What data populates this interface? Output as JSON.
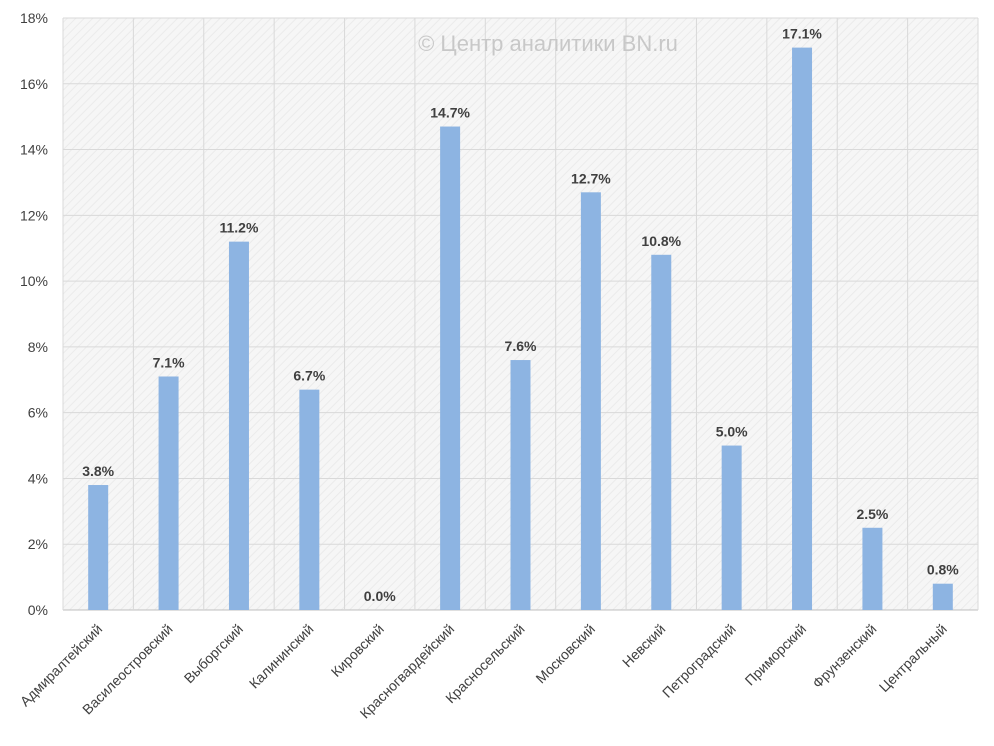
{
  "watermark": "© Центр аналитики BN.ru",
  "chart_data": {
    "type": "bar",
    "title": "",
    "xlabel": "",
    "ylabel": "",
    "ylim": [
      0,
      18
    ],
    "y_ticks": [
      0,
      2,
      4,
      6,
      8,
      10,
      12,
      14,
      16,
      18
    ],
    "y_tick_labels": [
      "0%",
      "2%",
      "4%",
      "6%",
      "8%",
      "10%",
      "12%",
      "14%",
      "16%",
      "18%"
    ],
    "grid": true,
    "legend": "none",
    "categories": [
      "Адмиралтейский",
      "Василеостровский",
      "Выборгский",
      "Калининский",
      "Кировский",
      "Красногвардейский",
      "Красносельский",
      "Московский",
      "Невский",
      "Петроградский",
      "Приморский",
      "Фрунзенский",
      "Центральный"
    ],
    "values": [
      3.8,
      7.1,
      11.2,
      6.7,
      0.0,
      14.7,
      7.6,
      12.7,
      10.8,
      5.0,
      17.1,
      2.5,
      0.8
    ],
    "data_labels": [
      "3.8%",
      "7.1%",
      "11.2%",
      "6.7%",
      "0.0%",
      "14.7%",
      "7.6%",
      "12.7%",
      "10.8%",
      "5.0%",
      "17.1%",
      "2.5%",
      "0.8%"
    ],
    "colors": {
      "bar": "#8DB4E2",
      "grid": "#d9d9d9",
      "axis": "#bfbfbf",
      "text": "#404040",
      "plot_background": "#f4f4f4",
      "watermark": "#c8c8c8"
    }
  }
}
